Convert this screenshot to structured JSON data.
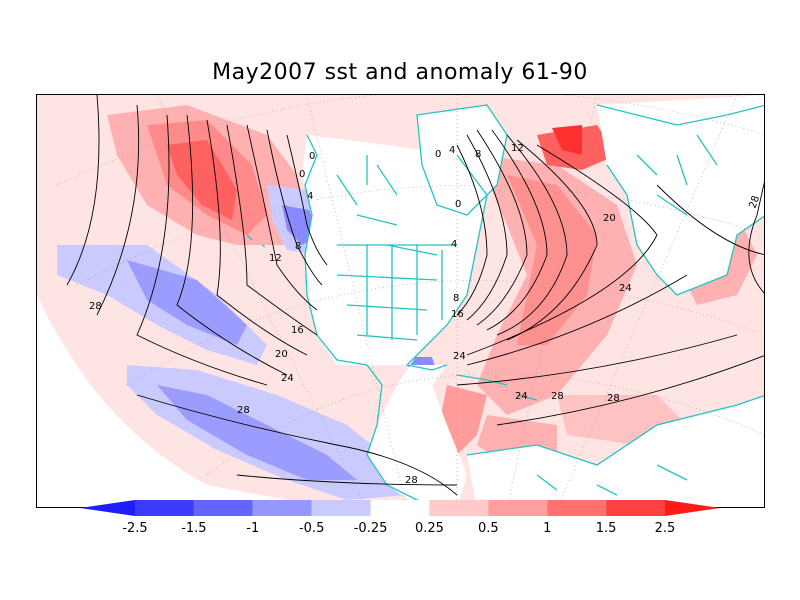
{
  "title": "May2007 sst and anomaly 61-90",
  "colors": {
    "coast": "#22c4c4",
    "contour": "#000000",
    "neg_strong": "#1e1eff",
    "neg_mid": "#5f5fff",
    "neg_light": "#9a9aff",
    "neg_pale": "#d3d3ff",
    "pos_pale": "#ffd9d9",
    "pos_light": "#ffb4b4",
    "pos_mid": "#ff8c8c",
    "pos_strong": "#ff5a5a",
    "pos_max": "#ff2020"
  },
  "contour_labels": [
    "0",
    "0",
    "4",
    "8",
    "12",
    "16",
    "20",
    "24",
    "28",
    "28",
    "28",
    "0",
    "4",
    "8",
    "12",
    "0",
    "4",
    "8",
    "16",
    "20",
    "24",
    "24",
    "24",
    "28",
    "28",
    "28"
  ],
  "colorbar": {
    "labels": [
      "-2.5",
      "-1.5",
      "-1",
      "-0.5",
      "-0.25",
      "0.25",
      "0.5",
      "1",
      "1.5",
      "2.5"
    ],
    "colors": [
      "#1e1eff",
      "#3c3cff",
      "#6464ff",
      "#9696ff",
      "#cacaff",
      "#ffffff",
      "#ffcaca",
      "#ff9e9e",
      "#ff7070",
      "#ff4040",
      "#ff1a1a"
    ]
  }
}
